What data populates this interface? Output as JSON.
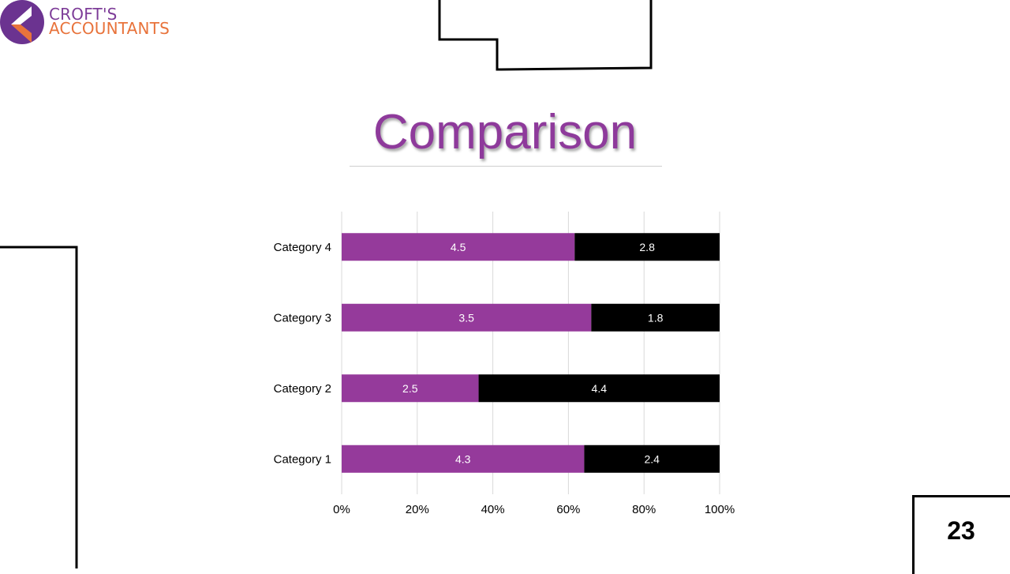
{
  "logo": {
    "line1": "CROFT'S",
    "line2": "ACCOUNTANTS",
    "icon": "crofts-logo-mark"
  },
  "slide": {
    "title": "Comparison",
    "page_number": "23"
  },
  "colors": {
    "series1": "#953a9b",
    "series2": "#000000",
    "title": "#8e3a9b",
    "logo_purple": "#6b3390",
    "logo_orange": "#e8733b"
  },
  "chart_data": {
    "type": "bar",
    "orientation": "horizontal",
    "stacking": "percent",
    "categories": [
      "Category 1",
      "Category 2",
      "Category 3",
      "Category 4"
    ],
    "series": [
      {
        "values": [
          4.3,
          2.5,
          3.5,
          4.5
        ]
      },
      {
        "values": [
          2.4,
          4.4,
          1.8,
          2.8
        ]
      }
    ],
    "x_ticks": [
      "0%",
      "20%",
      "40%",
      "60%",
      "80%",
      "100%"
    ],
    "xlim": [
      0,
      100
    ],
    "grid": true,
    "legend": "none"
  }
}
